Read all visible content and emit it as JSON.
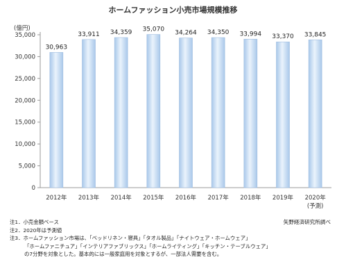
{
  "chart_data": {
    "type": "bar",
    "title": "ホームファッション小売市場規模推移",
    "ylabel": "(億円)",
    "categories": [
      "2012年",
      "2013年",
      "2014年",
      "2015年",
      "2016年",
      "2017年",
      "2018年",
      "2019年",
      "2020年"
    ],
    "category_sublabels": [
      "",
      "",
      "",
      "",
      "",
      "",
      "",
      "",
      "(予測)"
    ],
    "values": [
      30963,
      33911,
      34359,
      35070,
      34264,
      34350,
      33994,
      33370,
      33845
    ],
    "value_labels": [
      "30,963",
      "33,911",
      "34,359",
      "35,070",
      "34,264",
      "34,350",
      "33,994",
      "33,370",
      "33,845"
    ],
    "ylim": [
      0,
      35000
    ],
    "yticks": [
      0,
      5000,
      10000,
      15000,
      20000,
      25000,
      30000,
      35000
    ],
    "ytick_labels": [
      "0",
      "5,000",
      "10,000",
      "15,000",
      "20,000",
      "25,000",
      "30,000",
      "35,000"
    ],
    "grid": false,
    "legend": "none",
    "bar_color": "#b9d3ee"
  },
  "notes": {
    "note1": "注1．小売金額ベース",
    "note2": "注2．2020年は予測値",
    "note3_line1": "注3．ホームファッション市場は、「ベッドリネン・寝具」「タオル製品」「ナイトウェア・ホームウェア」",
    "note3_line2": "「ホームファニチュア」「インテリアファブリックス」「ホームライティング」「キッチン・テーブルウェア」",
    "note3_line3": "の7分野を対象とした。基本的には一般家庭用を対象とするが、一部法人需要を含む。"
  },
  "source": "矢野経済研究所調べ"
}
